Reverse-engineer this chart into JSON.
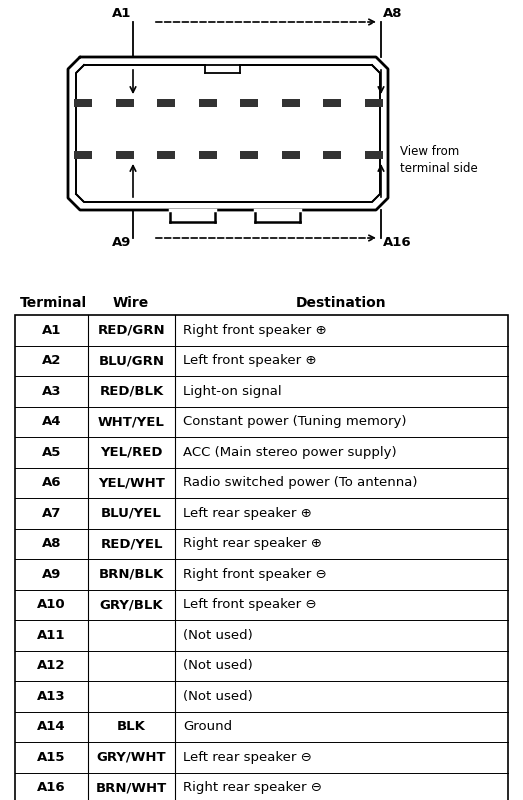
{
  "col_headers": [
    "Terminal",
    "Wire",
    "Destination"
  ],
  "rows": [
    [
      "A1",
      "RED/GRN",
      "Right front speaker ⊕"
    ],
    [
      "A2",
      "BLU/GRN",
      "Left front speaker ⊕"
    ],
    [
      "A3",
      "RED/BLK",
      "Light-on signal"
    ],
    [
      "A4",
      "WHT/YEL",
      "Constant power (Tuning memory)"
    ],
    [
      "A5",
      "YEL/RED",
      "ACC (Main stereo power supply)"
    ],
    [
      "A6",
      "YEL/WHT",
      "Radio switched power (To antenna)"
    ],
    [
      "A7",
      "BLU/YEL",
      "Left rear speaker ⊕"
    ],
    [
      "A8",
      "RED/YEL",
      "Right rear speaker ⊕"
    ],
    [
      "A9",
      "BRN/BLK",
      "Right front speaker ⊖"
    ],
    [
      "A10",
      "GRY/BLK",
      "Left front speaker ⊖"
    ],
    [
      "A11",
      "",
      "(Not used)"
    ],
    [
      "A12",
      "",
      "(Not used)"
    ],
    [
      "A13",
      "",
      "(Not used)"
    ],
    [
      "A14",
      "BLK",
      "Ground"
    ],
    [
      "A15",
      "GRY/WHT",
      "Left rear speaker ⊖"
    ],
    [
      "A16",
      "BRN/WHT",
      "Right rear speaker ⊖"
    ]
  ],
  "bg_color": "#ffffff",
  "connector_color": "#000000",
  "view_from_label": "View from\nterminal side"
}
